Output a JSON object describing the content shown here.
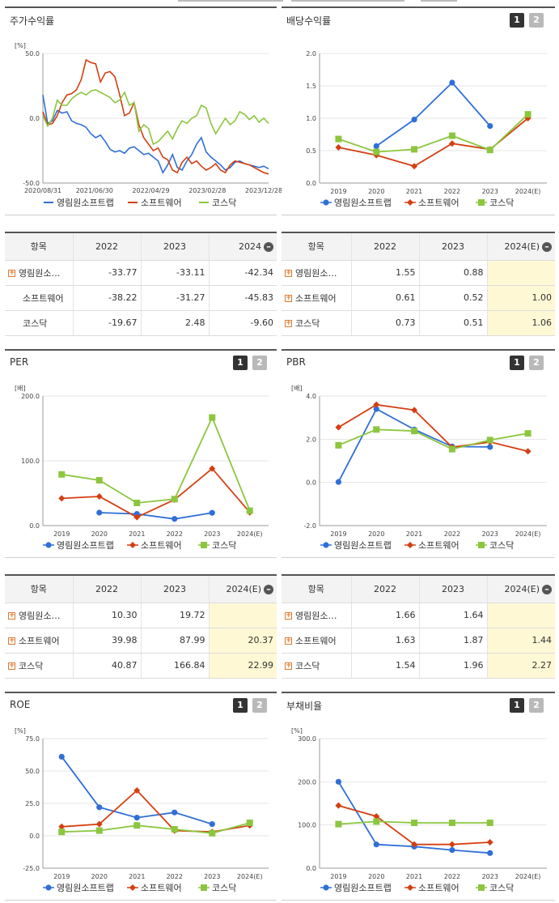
{
  "colors": {
    "series1": "#2f6fd6",
    "series2": "#d43f12",
    "series3": "#8cc63f"
  },
  "legend": [
    "영림원소프트랩",
    "소프트웨어",
    "코스닥"
  ],
  "pager": {
    "p1": "1",
    "p2": "2"
  },
  "panels": {
    "stock": {
      "title": "주가수익률",
      "unit": "[%]"
    },
    "dividend": {
      "title": "배당수익률"
    },
    "per": {
      "title": "PER",
      "unit": "[배]"
    },
    "pbr": {
      "title": "PBR",
      "unit": "[배]"
    },
    "roe": {
      "title": "ROE",
      "unit": "[%]"
    },
    "debt": {
      "title": "부채비율",
      "unit": "[%]"
    }
  },
  "tables": {
    "stock": {
      "headers": [
        "항목",
        "2022",
        "2023",
        "2024"
      ],
      "rows": [
        {
          "name": "영림원소…",
          "v": [
            "-33.77",
            "-33.11",
            "-42.34"
          ]
        },
        {
          "name": "소프트웨어",
          "v": [
            "-38.22",
            "-31.27",
            "-45.83"
          ]
        },
        {
          "name": "코스닥",
          "v": [
            "-19.67",
            "2.48",
            "-9.60"
          ]
        }
      ]
    },
    "dividend": {
      "headers": [
        "항목",
        "2022",
        "2023",
        "2024(E)"
      ],
      "rows": [
        {
          "name": "영림원소…",
          "v": [
            "1.55",
            "0.88",
            ""
          ]
        },
        {
          "name": "소프트웨어",
          "v": [
            "0.61",
            "0.52",
            "1.00"
          ]
        },
        {
          "name": "코스닥",
          "v": [
            "0.73",
            "0.51",
            "1.06"
          ]
        }
      ]
    },
    "per": {
      "headers": [
        "항목",
        "2022",
        "2023",
        "2024(E)"
      ],
      "rows": [
        {
          "name": "영림원소…",
          "v": [
            "10.30",
            "19.72",
            ""
          ]
        },
        {
          "name": "소프트웨어",
          "v": [
            "39.98",
            "87.99",
            "20.37"
          ]
        },
        {
          "name": "코스닥",
          "v": [
            "40.87",
            "166.84",
            "22.99"
          ]
        }
      ]
    },
    "pbr": {
      "headers": [
        "항목",
        "2022",
        "2023",
        "2024(E)"
      ],
      "rows": [
        {
          "name": "영림원소…",
          "v": [
            "1.66",
            "1.64",
            ""
          ]
        },
        {
          "name": "소프트웨어",
          "v": [
            "1.63",
            "1.87",
            "1.44"
          ]
        },
        {
          "name": "코스닥",
          "v": [
            "1.54",
            "1.96",
            "2.27"
          ]
        }
      ]
    }
  },
  "chart_data": [
    {
      "id": "stock",
      "type": "line",
      "ylim": [
        -50,
        50
      ],
      "yticks": [
        "50.0",
        "0.0",
        "-50.0"
      ],
      "xticks": [
        "2020/08/31",
        "2021/06/30",
        "2022/04/29",
        "2023/02/28",
        "2023/12/28"
      ],
      "series": [
        {
          "name": "영림원소프트랩",
          "values": [
            18,
            -4,
            -2,
            6,
            4,
            5,
            -2,
            -4,
            -5,
            -7,
            -12,
            -15,
            -13,
            -18,
            -24,
            -26,
            -25,
            -27,
            -23,
            -22,
            -25,
            -28,
            -27,
            -30,
            -33,
            -42,
            -36,
            -28,
            -38,
            -40,
            -33,
            -28,
            -20,
            -15,
            -26,
            -30,
            -33,
            -36,
            -40,
            -38,
            -34,
            -33,
            -35,
            -36,
            -37,
            -38,
            -37,
            -39
          ]
        },
        {
          "name": "소프트웨어",
          "values": [
            5,
            -5,
            -4,
            2,
            12,
            18,
            19,
            22,
            30,
            45,
            43,
            42,
            28,
            35,
            36,
            32,
            18,
            2,
            4,
            12,
            -5,
            -15,
            -20,
            -25,
            -23,
            -30,
            -32,
            -40,
            -42,
            -34,
            -30,
            -35,
            -33,
            -37,
            -40,
            -38,
            -35,
            -40,
            -42,
            -36,
            -33,
            -34,
            -35,
            -36,
            -38,
            -40,
            -42,
            -43
          ]
        },
        {
          "name": "코스닥",
          "values": [
            2,
            -6,
            0,
            14,
            10,
            10,
            15,
            18,
            20,
            18,
            21,
            22,
            20,
            18,
            16,
            12,
            14,
            20,
            10,
            12,
            -10,
            -5,
            -8,
            -20,
            -18,
            -14,
            -10,
            -16,
            -8,
            -2,
            -4,
            0,
            2,
            10,
            8,
            -4,
            -12,
            -6,
            0,
            -5,
            -2,
            5,
            3,
            -1,
            2,
            -3,
            0,
            -4
          ]
        }
      ]
    },
    {
      "id": "dividend",
      "type": "line",
      "ylim": [
        0,
        2
      ],
      "yticks": [
        "2.0",
        "1.5",
        "1.0",
        "0.5",
        "0.0"
      ],
      "categories": [
        "2019",
        "2020",
        "2021",
        "2022",
        "2023",
        "2024(E)"
      ],
      "series": [
        {
          "name": "영림원소프트랩",
          "values": [
            null,
            0.57,
            0.98,
            1.55,
            0.88,
            null
          ]
        },
        {
          "name": "소프트웨어",
          "values": [
            0.55,
            0.43,
            0.26,
            0.61,
            0.52,
            1.0
          ]
        },
        {
          "name": "코스닥",
          "values": [
            0.68,
            0.48,
            0.52,
            0.73,
            0.51,
            1.06
          ]
        }
      ]
    },
    {
      "id": "per",
      "type": "line",
      "ylim": [
        0,
        200
      ],
      "yticks": [
        "200.0",
        "100.0",
        "0.0"
      ],
      "categories": [
        "2019",
        "2020",
        "2021",
        "2022",
        "2023",
        "2024(E)"
      ],
      "series": [
        {
          "name": "영림원소프트랩",
          "values": [
            null,
            20,
            18,
            10.3,
            19.72,
            null
          ]
        },
        {
          "name": "소프트웨어",
          "values": [
            42,
            45,
            13,
            39.98,
            87.99,
            20.37
          ]
        },
        {
          "name": "코스닥",
          "values": [
            79,
            70,
            35,
            40.87,
            166.84,
            22.99
          ]
        }
      ]
    },
    {
      "id": "pbr",
      "type": "line",
      "ylim": [
        -2,
        4
      ],
      "yticks": [
        "4.0",
        "2.0",
        "0.0",
        "-2.0"
      ],
      "categories": [
        "2019",
        "2020",
        "2021",
        "2022",
        "2023",
        "2024(E)"
      ],
      "series": [
        {
          "name": "영림원소프트랩",
          "values": [
            0.02,
            3.4,
            2.45,
            1.66,
            1.64,
            null
          ]
        },
        {
          "name": "소프트웨어",
          "values": [
            2.55,
            3.6,
            3.35,
            1.63,
            1.87,
            1.44
          ]
        },
        {
          "name": "코스닥",
          "values": [
            1.72,
            2.45,
            2.38,
            1.54,
            1.96,
            2.27
          ]
        }
      ]
    },
    {
      "id": "roe",
      "type": "line",
      "ylim": [
        -25,
        75
      ],
      "yticks": [
        "75.0",
        "50.0",
        "25.0",
        "0.0",
        "-25.0"
      ],
      "categories": [
        "2019",
        "2020",
        "2021",
        "2022",
        "2023",
        "2024(E)"
      ],
      "series": [
        {
          "name": "영림원소프트랩",
          "values": [
            61,
            22,
            14,
            18,
            9,
            null
          ]
        },
        {
          "name": "소프트웨어",
          "values": [
            7,
            9,
            35,
            4,
            3,
            8
          ]
        },
        {
          "name": "코스닥",
          "values": [
            3,
            4,
            8,
            5,
            2,
            10
          ]
        }
      ]
    },
    {
      "id": "debt",
      "type": "line",
      "ylim": [
        0,
        300
      ],
      "yticks": [
        "300.0",
        "200.0",
        "100.0",
        "0.0"
      ],
      "categories": [
        "2019",
        "2020",
        "2021",
        "2022",
        "2023",
        "2024(E)"
      ],
      "series": [
        {
          "name": "영림원소프트랩",
          "values": [
            200,
            55,
            50,
            42,
            35,
            null
          ]
        },
        {
          "name": "소프트웨어",
          "values": [
            145,
            120,
            55,
            55,
            60,
            null
          ]
        },
        {
          "name": "코스닥",
          "values": [
            102,
            108,
            105,
            105,
            105,
            null
          ]
        }
      ]
    }
  ]
}
